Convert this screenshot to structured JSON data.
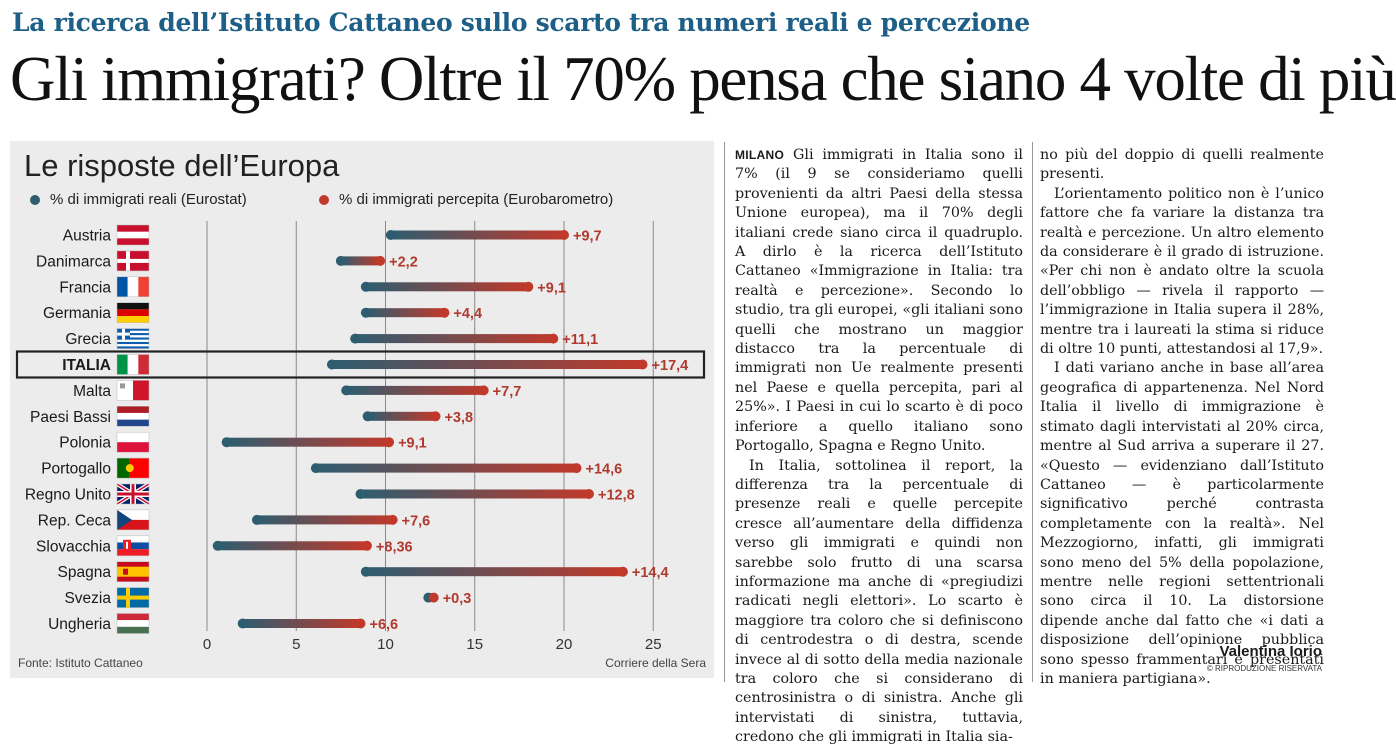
{
  "kicker": "La ricerca dell’Istituto Cattaneo sullo scarto tra numeri reali e percezione",
  "headline": "Gli immigrati? Oltre il 70% pensa che siano 4 volte di più",
  "chart": {
    "title": "Le risposte dell’Europa",
    "legend_real": "% di immigrati reali (Eurostat)",
    "legend_perceived": "% di immigrati percepita (Eurobarometro)",
    "source": "Fonte: Istituto Cattaneo",
    "credit": "Corriere della Sera"
  },
  "colors": {
    "real": "#2e5d70",
    "perceived": "#c0392b",
    "headline_blue": "#1d5f86"
  },
  "chart_data": {
    "type": "dumbbell",
    "title": "Le risposte dell’Europa",
    "xlabel": "",
    "ylabel": "",
    "xlim": [
      -1,
      27
    ],
    "xticks": [
      0,
      5,
      10,
      15,
      20,
      25
    ],
    "grid": true,
    "legend_position": "top",
    "highlighted": "ITALIA",
    "series": [
      {
        "name": "% di immigrati reali (Eurostat)",
        "values": [
          10.3,
          7.5,
          8.9,
          8.9,
          8.3,
          7.0,
          7.8,
          9.0,
          1.1,
          6.1,
          8.6,
          2.8,
          0.6,
          8.9,
          12.4,
          2.0
        ]
      },
      {
        "name": "% di immigrati percepita (Eurobarometro)",
        "values": [
          20.0,
          9.7,
          18.0,
          13.3,
          19.4,
          24.4,
          15.5,
          12.8,
          10.2,
          20.7,
          21.4,
          10.4,
          8.96,
          23.3,
          12.7,
          8.6
        ]
      }
    ],
    "countries": [
      {
        "name": "Austria",
        "flag": "austria",
        "gap": "+9,7"
      },
      {
        "name": "Danimarca",
        "flag": "denmark",
        "gap": "+2,2"
      },
      {
        "name": "Francia",
        "flag": "france",
        "gap": "+9,1"
      },
      {
        "name": "Germania",
        "flag": "germany",
        "gap": "+4,4"
      },
      {
        "name": "Grecia",
        "flag": "greece",
        "gap": "+11,1"
      },
      {
        "name": "ITALIA",
        "flag": "italy",
        "gap": "+17,4"
      },
      {
        "name": "Malta",
        "flag": "malta",
        "gap": "+7,7"
      },
      {
        "name": "Paesi Bassi",
        "flag": "netherlands",
        "gap": "+3,8"
      },
      {
        "name": "Polonia",
        "flag": "poland",
        "gap": "+9,1"
      },
      {
        "name": "Portogallo",
        "flag": "portugal",
        "gap": "+14,6"
      },
      {
        "name": "Regno Unito",
        "flag": "uk",
        "gap": "+12,8"
      },
      {
        "name": "Rep. Ceca",
        "flag": "czech",
        "gap": "+7,6"
      },
      {
        "name": "Slovacchia",
        "flag": "slovakia",
        "gap": "+8,36"
      },
      {
        "name": "Spagna",
        "flag": "spain",
        "gap": "+14,4"
      },
      {
        "name": "Svezia",
        "flag": "sweden",
        "gap": "+0,3"
      },
      {
        "name": "Ungheria",
        "flag": "hungary",
        "gap": "+6,6"
      }
    ]
  },
  "article": {
    "dateline": "MILANO",
    "col1": [
      "Gli immigrati in Italia sono il 7% (il 9 se consideriamo quelli provenienti da altri Paesi della stessa Unione europea), ma il 70% degli italiani crede siano circa il quadruplo. A dirlo è la ricerca dell’Istituto Cattaneo «Immigrazione in Italia: tra realtà e percezione». Secondo lo studio, tra gli europei, «gli italiani sono quelli che mostrano un maggior distacco tra la percentuale di immigrati non Ue realmente presenti nel Paese e quella percepita, pari al 25%». I Paesi in cui lo scarto è di poco inferiore a quello italiano sono Portogallo, Spagna e Regno Unito.",
      "In Italia, sottolinea il report, la differenza tra la percentuale di presenze reali e quelle percepite cresce all’aumentare della diffidenza verso gli immigrati e quindi non sarebbe solo frutto di una scarsa informazione ma anche di «pregiudizi radicati negli elettori». Lo scarto è maggiore tra coloro che si definiscono di centrodestra o di destra, scende invece al di sotto della media nazionale tra coloro che si considerano di centrosinistra o di sinistra. Anche gli intervistati di sinistra, tuttavia, credono che gli immigrati in Italia sia-"
    ],
    "col2": [
      "no più del doppio di quelli realmente presenti.",
      "L’orientamento politico non è l’unico fattore che fa variare la distanza tra realtà e percezione. Un altro elemento da considerare è il grado di istruzione. «Per chi non è andato oltre la scuola dell’obbligo — rivela il rapporto — l’immigrazione in Italia supera il 28%, mentre tra i laureati la stima si riduce di oltre 10 punti, attestandosi al 17,9».",
      "I dati variano anche in base all’area geografica di appartenenza. Nel Nord Italia il livello di immigrazione è stimato dagli intervistati al 20% circa, mentre al Sud arriva a superare il 27. «Questo — evidenziano dall’Istituto Cattaneo — è particolarmente significativo perché contrasta completamente con la realtà». Nel Mezzogiorno, infatti, gli immigrati sono meno del 5% della popolazione, mentre nelle regioni settentrionali sono circa il 10. La distorsione dipende anche dal fatto che «i dati a disposizione dell’opinione pubblica sono spesso frammentari e presentati in maniera partigiana»."
    ],
    "author": "Valentina Iorio",
    "rights": "© RIPRODUZIONE RISERVATA"
  }
}
